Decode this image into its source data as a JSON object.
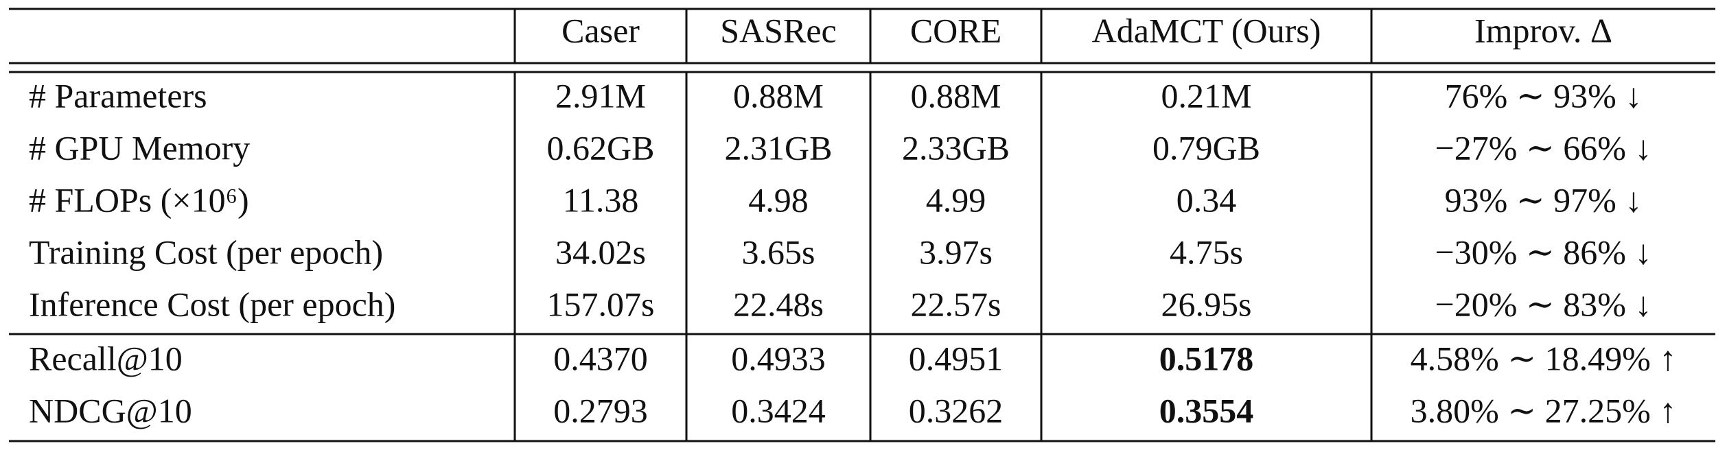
{
  "table": {
    "header": [
      "Caser",
      "SASRec",
      "CORE",
      "AdaMCT (Ours)",
      "Improv. Δ"
    ],
    "sections": [
      {
        "rows": [
          [
            "# Parameters",
            "2.91M",
            "0.88M",
            "0.88M",
            "0.21M",
            "76% ∼ 93% ↓"
          ],
          [
            "# GPU Memory",
            "0.62GB",
            "2.31GB",
            "2.33GB",
            "0.79GB",
            "−27% ∼ 66% ↓"
          ],
          [
            "# FLOPs (×10⁶)",
            "11.38",
            "4.98",
            "4.99",
            "0.34",
            "93% ∼ 97% ↓"
          ],
          [
            "Training Cost (per epoch)",
            "34.02s",
            "3.65s",
            "3.97s",
            "4.75s",
            "−30% ∼ 86% ↓"
          ],
          [
            "Inference Cost (per epoch)",
            "157.07s",
            "22.48s",
            "22.57s",
            "26.95s",
            "−20% ∼ 83% ↓"
          ]
        ]
      },
      {
        "rows": [
          [
            "Recall@10",
            "0.4370",
            "0.4933",
            "0.4951",
            "0.5178",
            "4.58% ∼ 18.49% ↑"
          ],
          [
            "NDCG@10",
            "0.2793",
            "0.3424",
            "0.3262",
            "0.3554",
            "3.80% ∼ 27.25% ↑"
          ]
        ]
      }
    ]
  }
}
